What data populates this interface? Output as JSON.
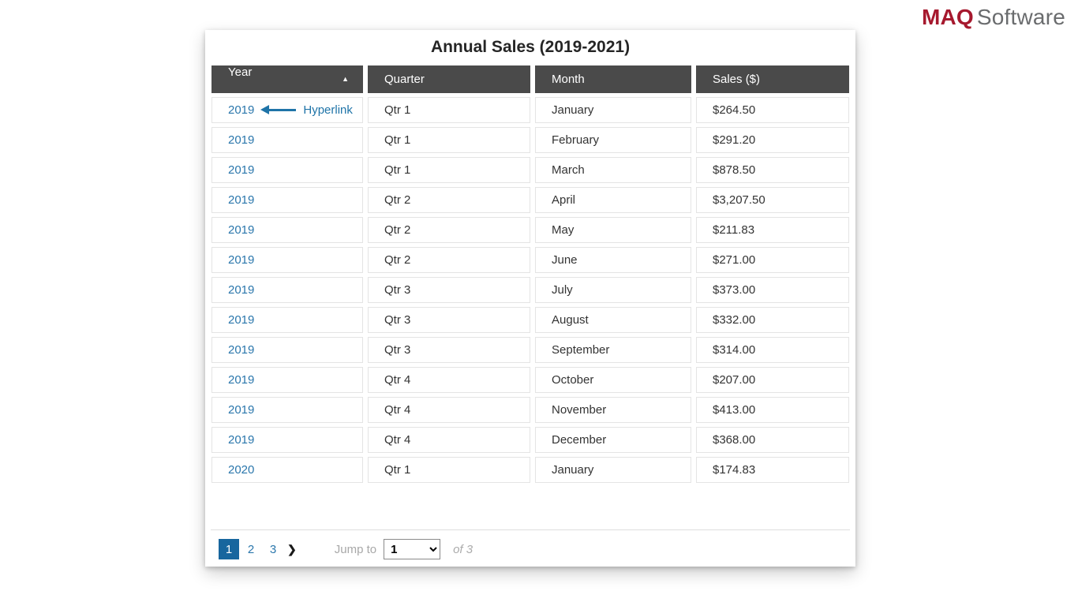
{
  "logo": {
    "brand": "MAQ",
    "suffix": "Software"
  },
  "table": {
    "title": "Annual Sales (2019-2021)",
    "columns": [
      {
        "label": "Year",
        "sort": "ascending"
      },
      {
        "label": "Quarter"
      },
      {
        "label": "Month"
      },
      {
        "label": "Sales ($)"
      }
    ],
    "rows": [
      {
        "year": "2019",
        "quarter": "Qtr 1",
        "month": "January",
        "sales": "$264.50"
      },
      {
        "year": "2019",
        "quarter": "Qtr 1",
        "month": "February",
        "sales": "$291.20"
      },
      {
        "year": "2019",
        "quarter": "Qtr 1",
        "month": "March",
        "sales": "$878.50"
      },
      {
        "year": "2019",
        "quarter": "Qtr 2",
        "month": "April",
        "sales": "$3,207.50"
      },
      {
        "year": "2019",
        "quarter": "Qtr 2",
        "month": "May",
        "sales": "$211.83"
      },
      {
        "year": "2019",
        "quarter": "Qtr 2",
        "month": "June",
        "sales": "$271.00"
      },
      {
        "year": "2019",
        "quarter": "Qtr 3",
        "month": "July",
        "sales": "$373.00"
      },
      {
        "year": "2019",
        "quarter": "Qtr 3",
        "month": "August",
        "sales": "$332.00"
      },
      {
        "year": "2019",
        "quarter": "Qtr 3",
        "month": "September",
        "sales": "$314.00"
      },
      {
        "year": "2019",
        "quarter": "Qtr 4",
        "month": "October",
        "sales": "$207.00"
      },
      {
        "year": "2019",
        "quarter": "Qtr 4",
        "month": "November",
        "sales": "$413.00"
      },
      {
        "year": "2019",
        "quarter": "Qtr 4",
        "month": "December",
        "sales": "$368.00"
      },
      {
        "year": "2020",
        "quarter": "Qtr 1",
        "month": "January",
        "sales": "$174.83"
      }
    ]
  },
  "annotation": {
    "label": "Hyperlink"
  },
  "pagination": {
    "pages": [
      "1",
      "2",
      "3"
    ],
    "active_page": "1",
    "jump_label": "Jump to",
    "jump_value": "1",
    "total_label": "of 3"
  },
  "icons": {
    "sort_asc": "▲",
    "next": "❯"
  },
  "colors": {
    "header_bg": "#4A4A4A",
    "link_blue": "#2B77AC",
    "active_page_bg": "#17669E",
    "annotation_blue": "#1F74A8",
    "brand_red": "#A6192E",
    "brand_gray": "#6A6C6E"
  }
}
